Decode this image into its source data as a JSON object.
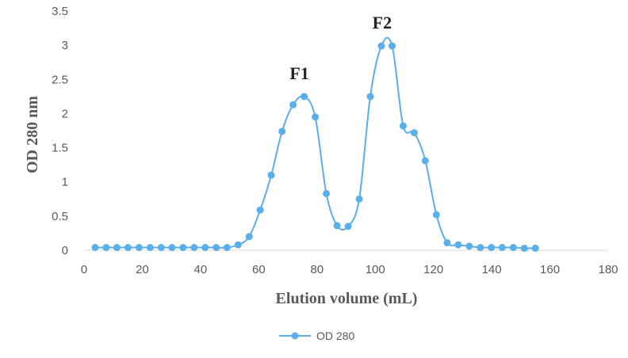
{
  "chart_data": {
    "type": "line",
    "xlabel": "Elution volume (mL)",
    "ylabel": "OD 280 nm",
    "xlim": [
      0,
      180
    ],
    "ylim": [
      0,
      3.5
    ],
    "xticks": [
      "0",
      "20",
      "40",
      "60",
      "80",
      "100",
      "120",
      "140",
      "160",
      "180"
    ],
    "yticks": [
      "0",
      "0.5",
      "1",
      "1.5",
      "2",
      "2.5",
      "3",
      "3.5"
    ],
    "grid": false,
    "legend_position": "bottom",
    "series": [
      {
        "name": "OD 280",
        "color": "#5aaeea",
        "x": [
          3.8,
          7.6,
          11.3,
          15.1,
          18.9,
          22.7,
          26.5,
          30.2,
          34.0,
          37.8,
          41.6,
          45.4,
          49.1,
          52.9,
          56.7,
          60.5,
          64.3,
          68.0,
          71.8,
          75.6,
          79.4,
          83.2,
          86.9,
          90.7,
          94.5,
          98.3,
          102.1,
          105.8,
          109.6,
          113.4,
          117.2,
          121.0,
          124.7,
          128.5,
          132.3,
          136.1,
          139.9,
          143.6,
          147.4,
          151.2,
          155.0
        ],
        "y": [
          0.04,
          0.04,
          0.04,
          0.04,
          0.04,
          0.04,
          0.04,
          0.04,
          0.04,
          0.04,
          0.04,
          0.04,
          0.04,
          0.08,
          0.2,
          0.59,
          1.1,
          1.74,
          2.13,
          2.25,
          1.95,
          0.83,
          0.36,
          0.35,
          0.75,
          2.25,
          2.99,
          2.99,
          1.82,
          1.72,
          1.31,
          0.52,
          0.11,
          0.08,
          0.06,
          0.04,
          0.04,
          0.04,
          0.04,
          0.03,
          0.03
        ]
      }
    ],
    "annotations": [
      {
        "text": "F1",
        "x": 75.6,
        "y": 2.25
      },
      {
        "text": "F2",
        "x": 104,
        "y": 2.99
      }
    ]
  }
}
